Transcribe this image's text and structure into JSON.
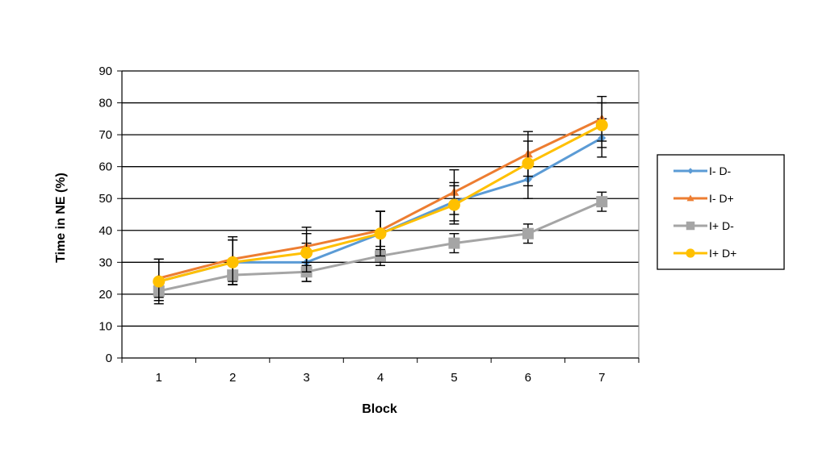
{
  "chart_data": {
    "type": "line",
    "title": "",
    "xlabel": "Block",
    "ylabel": "Time in NE (%)",
    "categories": [
      "1",
      "2",
      "3",
      "4",
      "5",
      "6",
      "7"
    ],
    "ylim": [
      0,
      90
    ],
    "yticks": [
      "0",
      "10",
      "20",
      "30",
      "40",
      "50",
      "60",
      "70",
      "80",
      "90"
    ],
    "grid": "horizontal",
    "legend_position": "right",
    "series": [
      {
        "name": "I- D-",
        "color": "#5b9bd5",
        "marker": "diamond",
        "values": [
          24,
          30,
          30,
          39,
          49,
          56,
          69
        ],
        "errors": [
          7,
          7,
          6,
          7,
          6,
          6,
          6
        ]
      },
      {
        "name": "I- D+",
        "color": "#ed7d31",
        "marker": "triangle",
        "values": [
          25,
          31,
          35,
          40,
          52,
          64,
          75
        ],
        "errors": [
          6,
          7,
          6,
          6,
          7,
          7,
          7
        ]
      },
      {
        "name": "I+ D-",
        "color": "#a5a5a5",
        "marker": "square",
        "values": [
          21,
          26,
          27,
          32,
          36,
          39,
          49
        ],
        "errors": [
          3,
          3,
          3,
          3,
          3,
          3,
          3
        ]
      },
      {
        "name": "I+ D+",
        "color": "#ffc000",
        "marker": "circle",
        "values": [
          24,
          30,
          33,
          39,
          48,
          61,
          73
        ],
        "errors": [
          6,
          7,
          6,
          7,
          6,
          7,
          7
        ]
      }
    ]
  }
}
